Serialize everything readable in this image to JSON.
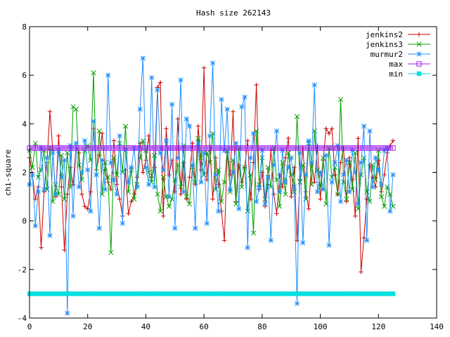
{
  "chart_data": {
    "type": "line",
    "title": "Hash size 262143",
    "xlabel": "",
    "ylabel": "chi-square",
    "xlim": [
      0,
      140
    ],
    "ylim": [
      -4,
      8
    ],
    "xticks": [
      0,
      20,
      40,
      60,
      80,
      100,
      120,
      140
    ],
    "yticks": [
      -4,
      -2,
      0,
      2,
      4,
      6,
      8
    ],
    "grid": false,
    "legend_position": "top-right",
    "series": [
      {
        "name": "jenkins2",
        "color": "#cc0000",
        "marker": "plus",
        "x": [
          0,
          1,
          2,
          3,
          4,
          5,
          6,
          7,
          8,
          9,
          10,
          11,
          12,
          13,
          14,
          15,
          16,
          17,
          18,
          19,
          20,
          21,
          22,
          23,
          24,
          25,
          26,
          27,
          28,
          29,
          30,
          31,
          32,
          33,
          34,
          35,
          36,
          37,
          38,
          39,
          40,
          41,
          42,
          43,
          44,
          45,
          46,
          47,
          48,
          49,
          50,
          51,
          52,
          53,
          54,
          55,
          56,
          57,
          58,
          59,
          60,
          61,
          62,
          63,
          64,
          65,
          66,
          67,
          68,
          69,
          70,
          71,
          72,
          73,
          74,
          75,
          76,
          77,
          78,
          79,
          80,
          81,
          82,
          83,
          84,
          85,
          86,
          87,
          88,
          89,
          90,
          91,
          92,
          93,
          94,
          95,
          96,
          97,
          98,
          99,
          100,
          101,
          102,
          103,
          104,
          105,
          106,
          107,
          108,
          109,
          110,
          111,
          112,
          113,
          114,
          115,
          116,
          117,
          118,
          119,
          120,
          121,
          122,
          123,
          124,
          125
        ],
        "y": [
          2.6,
          1.9,
          0.9,
          1.4,
          -1.1,
          1.2,
          2.4,
          4.5,
          2.9,
          1.0,
          3.5,
          1.4,
          -1.2,
          1.1,
          2.2,
          1.5,
          3.1,
          2.8,
          1.1,
          0.6,
          0.5,
          1.2,
          3.8,
          2.1,
          2.7,
          3.6,
          2.1,
          1.6,
          1.3,
          3.3,
          1.5,
          0.9,
          0.2,
          2.1,
          0.3,
          0.8,
          1.1,
          1.8,
          3.2,
          2.0,
          2.5,
          3.5,
          1.8,
          2.2,
          5.5,
          5.7,
          0.2,
          3.8,
          1.9,
          2.5,
          1.2,
          4.2,
          1.1,
          2.4,
          0.9,
          1.8,
          3.2,
          1.5,
          3.9,
          2.1,
          6.3,
          1.7,
          3.1,
          0.9,
          2.6,
          1.5,
          0.4,
          -0.8,
          2.8,
          1.9,
          4.5,
          0.8,
          2.3,
          1.6,
          2.2,
          3.3,
          0.9,
          2.4,
          5.6,
          1.3,
          2.0,
          0.6,
          1.5,
          2.9,
          1.1,
          0.3,
          1.9,
          1.4,
          2.6,
          3.4,
          1.0,
          2.2,
          -0.8,
          1.7,
          3.0,
          1.2,
          0.5,
          2.4,
          1.6,
          3.1,
          0.9,
          2.5,
          3.8,
          3.6,
          3.8,
          1.9,
          1.1,
          2.4,
          3.0,
          0.8,
          2.6,
          1.7,
          0.2,
          3.4,
          -2.1,
          -0.7,
          0.9,
          2.3,
          1.8,
          1.4,
          2.5,
          1.2,
          1.9,
          2.8,
          3.1,
          3.3
        ]
      },
      {
        "name": "jenkins3",
        "color": "#00a000",
        "marker": "cross",
        "x": [
          0,
          1,
          2,
          3,
          4,
          5,
          6,
          7,
          8,
          9,
          10,
          11,
          12,
          13,
          14,
          15,
          16,
          17,
          18,
          19,
          20,
          21,
          22,
          23,
          24,
          25,
          26,
          27,
          28,
          29,
          30,
          31,
          32,
          33,
          34,
          35,
          36,
          37,
          38,
          39,
          40,
          41,
          42,
          43,
          44,
          45,
          46,
          47,
          48,
          49,
          50,
          51,
          52,
          53,
          54,
          55,
          56,
          57,
          58,
          59,
          60,
          61,
          62,
          63,
          64,
          65,
          66,
          67,
          68,
          69,
          70,
          71,
          72,
          73,
          74,
          75,
          76,
          77,
          78,
          79,
          80,
          81,
          82,
          83,
          84,
          85,
          86,
          87,
          88,
          89,
          90,
          91,
          92,
          93,
          94,
          95,
          96,
          97,
          98,
          99,
          100,
          101,
          102,
          103,
          104,
          105,
          106,
          107,
          108,
          109,
          110,
          111,
          112,
          113,
          114,
          115,
          116,
          117,
          118,
          119,
          120,
          121,
          122,
          123,
          124,
          125
        ],
        "y": [
          2.9,
          2.2,
          3.2,
          1.8,
          2.1,
          2.9,
          1.3,
          3.0,
          0.8,
          1.5,
          1.1,
          2.7,
          0.9,
          2.8,
          1.4,
          4.7,
          4.6,
          2.3,
          1.7,
          2.9,
          3.1,
          2.5,
          6.1,
          1.9,
          3.7,
          1.1,
          2.4,
          1.8,
          -1.3,
          2.6,
          1.9,
          3.2,
          2.0,
          3.9,
          1.2,
          2.1,
          0.9,
          1.5,
          2.6,
          3.3,
          2.9,
          2.0,
          1.6,
          2.7,
          1.1,
          0.4,
          1.8,
          1.0,
          0.6,
          0.9,
          1.7,
          2.3,
          1.4,
          3.1,
          1.0,
          0.7,
          2.2,
          1.6,
          3.4,
          2.6,
          1.9,
          2.8,
          2.4,
          3.6,
          1.3,
          2.1,
          0.8,
          1.6,
          2.9,
          1.2,
          2.5,
          0.7,
          3.0,
          1.4,
          2.2,
          0.4,
          1.9,
          -0.5,
          3.7,
          1.5,
          2.6,
          0.9,
          2.2,
          1.4,
          3.0,
          1.7,
          0.6,
          2.4,
          1.1,
          2.8,
          1.9,
          1.2,
          4.3,
          1.6,
          2.3,
          0.9,
          3.2,
          1.5,
          3.7,
          2.1,
          1.4,
          2.6,
          0.7,
          3.0,
          1.8,
          2.2,
          1.1,
          5.0,
          1.6,
          0.9,
          2.4,
          1.3,
          2.8,
          0.5,
          1.9,
          2.6,
          1.2,
          0.8,
          2.3,
          1.7,
          2.9,
          1.0,
          0.6,
          1.4,
          1.1,
          0.6
        ]
      },
      {
        "name": "murmur2",
        "color": "#1e90ff",
        "marker": "star",
        "x": [
          0,
          1,
          2,
          3,
          4,
          5,
          6,
          7,
          8,
          9,
          10,
          11,
          12,
          13,
          14,
          15,
          16,
          17,
          18,
          19,
          20,
          21,
          22,
          23,
          24,
          25,
          26,
          27,
          28,
          29,
          30,
          31,
          32,
          33,
          34,
          35,
          36,
          37,
          38,
          39,
          40,
          41,
          42,
          43,
          44,
          45,
          46,
          47,
          48,
          49,
          50,
          51,
          52,
          53,
          54,
          55,
          56,
          57,
          58,
          59,
          60,
          61,
          62,
          63,
          64,
          65,
          66,
          67,
          68,
          69,
          70,
          71,
          72,
          73,
          74,
          75,
          76,
          77,
          78,
          79,
          80,
          81,
          82,
          83,
          84,
          85,
          86,
          87,
          88,
          89,
          90,
          91,
          92,
          93,
          94,
          95,
          96,
          97,
          98,
          99,
          100,
          101,
          102,
          103,
          104,
          105,
          106,
          107,
          108,
          109,
          110,
          111,
          112,
          113,
          114,
          115,
          116,
          117,
          118,
          119,
          120,
          121,
          122,
          123,
          124,
          125
        ],
        "y": [
          1.5,
          1.9,
          -0.2,
          1.2,
          3.0,
          1.3,
          2.6,
          -0.6,
          2.8,
          1.1,
          2.9,
          1.8,
          2.5,
          -3.8,
          3.1,
          0.2,
          3.2,
          1.4,
          2.0,
          3.3,
          2.1,
          0.4,
          4.1,
          1.9,
          -0.3,
          2.5,
          1.3,
          6.0,
          2.4,
          1.7,
          1.1,
          3.5,
          -0.1,
          2.9,
          1.6,
          2.2,
          3.0,
          1.4,
          4.6,
          6.7,
          2.2,
          1.5,
          5.9,
          1.4,
          5.4,
          2.8,
          2.1,
          3.3,
          1.0,
          4.8,
          -0.3,
          2.6,
          5.8,
          1.2,
          4.2,
          3.9,
          2.3,
          -0.3,
          3.2,
          1.6,
          2.8,
          -0.1,
          3.5,
          6.5,
          1.9,
          0.4,
          5.0,
          2.9,
          4.6,
          1.3,
          2.0,
          3.2,
          0.5,
          4.7,
          5.1,
          -1.1,
          2.6,
          3.6,
          0.8,
          1.4,
          2.9,
          0.7,
          1.8,
          -0.8,
          2.3,
          3.7,
          1.2,
          2.9,
          1.6,
          2.2,
          2.6,
          1.4,
          -3.4,
          2.8,
          -0.9,
          1.9,
          3.3,
          2.4,
          5.6,
          1.2,
          2.0,
          1.3,
          2.7,
          -1.0,
          1.6,
          2.4,
          3.1,
          0.8,
          1.9,
          2.5,
          1.2,
          2.9,
          2.0,
          0.7,
          2.4,
          3.9,
          -0.8,
          3.7,
          1.4,
          2.6,
          2.1,
          1.5,
          2.9,
          3.0,
          0.4,
          1.9
        ]
      },
      {
        "name": "max",
        "color": "#a020f0",
        "marker": "open-square",
        "x": [
          0,
          1,
          2,
          3,
          4,
          5,
          6,
          7,
          8,
          9,
          10,
          11,
          12,
          13,
          14,
          15,
          16,
          17,
          18,
          19,
          20,
          21,
          22,
          23,
          24,
          25,
          26,
          27,
          28,
          29,
          30,
          31,
          32,
          33,
          34,
          35,
          36,
          37,
          38,
          39,
          40,
          41,
          42,
          43,
          44,
          45,
          46,
          47,
          48,
          49,
          50,
          51,
          52,
          53,
          54,
          55,
          56,
          57,
          58,
          59,
          60,
          61,
          62,
          63,
          64,
          65,
          66,
          67,
          68,
          69,
          70,
          71,
          72,
          73,
          74,
          75,
          76,
          77,
          78,
          79,
          80,
          81,
          82,
          83,
          84,
          85,
          86,
          87,
          88,
          89,
          90,
          91,
          92,
          93,
          94,
          95,
          96,
          97,
          98,
          99,
          100,
          101,
          102,
          103,
          104,
          105,
          106,
          107,
          108,
          109,
          110,
          111,
          112,
          113,
          114,
          115,
          116,
          117,
          118,
          119,
          120,
          121,
          122,
          123,
          124,
          125
        ],
        "y": [
          3.0,
          3.0,
          3.0,
          3.0,
          3.0,
          3.0,
          3.0,
          3.0,
          3.0,
          3.0,
          3.0,
          3.0,
          3.0,
          3.0,
          3.0,
          3.0,
          3.0,
          3.0,
          3.0,
          3.0,
          3.0,
          3.0,
          3.0,
          3.0,
          3.0,
          3.0,
          3.0,
          3.0,
          3.0,
          3.0,
          3.0,
          3.0,
          3.0,
          3.0,
          3.0,
          3.0,
          3.0,
          3.0,
          3.0,
          3.0,
          3.0,
          3.0,
          3.0,
          3.0,
          3.0,
          3.0,
          3.0,
          3.0,
          3.0,
          3.0,
          3.0,
          3.0,
          3.0,
          3.0,
          3.0,
          3.0,
          3.0,
          3.0,
          3.0,
          3.0,
          3.0,
          3.0,
          3.0,
          3.0,
          3.0,
          3.0,
          3.0,
          3.0,
          3.0,
          3.0,
          3.0,
          3.0,
          3.0,
          3.0,
          3.0,
          3.0,
          3.0,
          3.0,
          3.0,
          3.0,
          3.0,
          3.0,
          3.0,
          3.0,
          3.0,
          3.0,
          3.0,
          3.0,
          3.0,
          3.0,
          3.0,
          3.0,
          3.0,
          3.0,
          3.0,
          3.0,
          3.0,
          3.0,
          3.0,
          3.0,
          3.0,
          3.0,
          3.0,
          3.0,
          3.0,
          3.0,
          3.0,
          3.0,
          3.0,
          3.0,
          3.0,
          3.0,
          3.0,
          3.0,
          3.0,
          3.0,
          3.0,
          3.0,
          3.0,
          3.0,
          3.0,
          3.0,
          3.0,
          3.0,
          3.0,
          3.0
        ]
      },
      {
        "name": "min",
        "color": "#00e0e0",
        "marker": "filled-square",
        "x": [
          0,
          1,
          2,
          3,
          4,
          5,
          6,
          7,
          8,
          9,
          10,
          11,
          12,
          13,
          14,
          15,
          16,
          17,
          18,
          19,
          20,
          21,
          22,
          23,
          24,
          25,
          26,
          27,
          28,
          29,
          30,
          31,
          32,
          33,
          34,
          35,
          36,
          37,
          38,
          39,
          40,
          41,
          42,
          43,
          44,
          45,
          46,
          47,
          48,
          49,
          50,
          51,
          52,
          53,
          54,
          55,
          56,
          57,
          58,
          59,
          60,
          61,
          62,
          63,
          64,
          65,
          66,
          67,
          68,
          69,
          70,
          71,
          72,
          73,
          74,
          75,
          76,
          77,
          78,
          79,
          80,
          81,
          82,
          83,
          84,
          85,
          86,
          87,
          88,
          89,
          90,
          91,
          92,
          93,
          94,
          95,
          96,
          97,
          98,
          99,
          100,
          101,
          102,
          103,
          104,
          105,
          106,
          107,
          108,
          109,
          110,
          111,
          112,
          113,
          114,
          115,
          116,
          117,
          118,
          119,
          120,
          121,
          122,
          123,
          124,
          125
        ],
        "y": [
          -3.0,
          -3.0,
          -3.0,
          -3.0,
          -3.0,
          -3.0,
          -3.0,
          -3.0,
          -3.0,
          -3.0,
          -3.0,
          -3.0,
          -3.0,
          -3.0,
          -3.0,
          -3.0,
          -3.0,
          -3.0,
          -3.0,
          -3.0,
          -3.0,
          -3.0,
          -3.0,
          -3.0,
          -3.0,
          -3.0,
          -3.0,
          -3.0,
          -3.0,
          -3.0,
          -3.0,
          -3.0,
          -3.0,
          -3.0,
          -3.0,
          -3.0,
          -3.0,
          -3.0,
          -3.0,
          -3.0,
          -3.0,
          -3.0,
          -3.0,
          -3.0,
          -3.0,
          -3.0,
          -3.0,
          -3.0,
          -3.0,
          -3.0,
          -3.0,
          -3.0,
          -3.0,
          -3.0,
          -3.0,
          -3.0,
          -3.0,
          -3.0,
          -3.0,
          -3.0,
          -3.0,
          -3.0,
          -3.0,
          -3.0,
          -3.0,
          -3.0,
          -3.0,
          -3.0,
          -3.0,
          -3.0,
          -3.0,
          -3.0,
          -3.0,
          -3.0,
          -3.0,
          -3.0,
          -3.0,
          -3.0,
          -3.0,
          -3.0,
          -3.0,
          -3.0,
          -3.0,
          -3.0,
          -3.0,
          -3.0,
          -3.0,
          -3.0,
          -3.0,
          -3.0,
          -3.0,
          -3.0,
          -3.0,
          -3.0,
          -3.0,
          -3.0,
          -3.0,
          -3.0,
          -3.0,
          -3.0,
          -3.0,
          -3.0,
          -3.0,
          -3.0,
          -3.0,
          -3.0,
          -3.0,
          -3.0,
          -3.0,
          -3.0,
          -3.0,
          -3.0,
          -3.0,
          -3.0,
          -3.0,
          -3.0,
          -3.0,
          -3.0,
          -3.0,
          -3.0,
          -3.0,
          -3.0,
          -3.0,
          -3.0,
          -3.0,
          -3.0
        ]
      }
    ]
  }
}
